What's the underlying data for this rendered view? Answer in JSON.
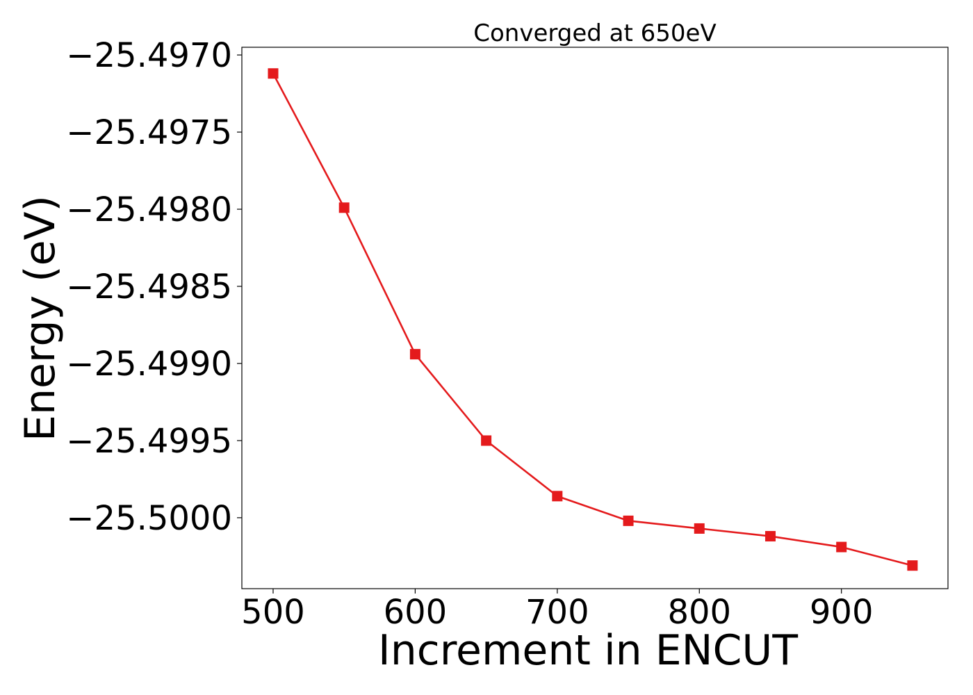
{
  "chart_data": {
    "type": "line",
    "title": "Converged at 650eV",
    "xlabel": "Increment in ENCUT",
    "ylabel": "Energy (eV)",
    "x": [
      500,
      550,
      600,
      650,
      700,
      750,
      800,
      850,
      900,
      950
    ],
    "series": [
      {
        "values": [
          -25.49712,
          -25.49799,
          -25.49894,
          -25.4995,
          -25.49986,
          -25.50002,
          -25.50007,
          -25.50012,
          -25.50019,
          -25.50031
        ],
        "color": "#e41a1c",
        "marker": "square"
      }
    ],
    "xlim": [
      478,
      975
    ],
    "ylim": [
      -25.50046,
      -25.49695
    ],
    "xticks": [
      500,
      600,
      700,
      800,
      900
    ],
    "xtick_labels": [
      "500",
      "600",
      "700",
      "800",
      "900"
    ],
    "yticks": [
      -25.497,
      -25.4975,
      -25.498,
      -25.4985,
      -25.499,
      -25.4995,
      -25.5
    ],
    "ytick_labels": [
      "−25.4970",
      "−25.4975",
      "−25.4980",
      "−25.4985",
      "−25.4990",
      "−25.4995",
      "−25.5000"
    ],
    "grid": false,
    "legend": "none"
  }
}
